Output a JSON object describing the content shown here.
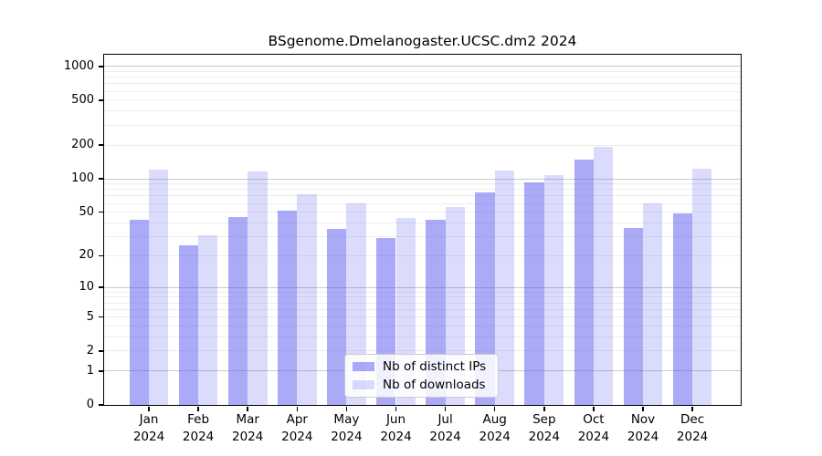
{
  "chart_data": {
    "type": "bar",
    "title": "BSgenome.Dmelanogaster.UCSC.dm2 2024",
    "year_label": "2024",
    "categories": [
      "Jan",
      "Feb",
      "Mar",
      "Apr",
      "May",
      "Jun",
      "Jul",
      "Aug",
      "Sep",
      "Oct",
      "Nov",
      "Dec"
    ],
    "series": [
      {
        "name": "Nb of distinct IPs",
        "key": "distinct-ips",
        "base_color": "#5656f0",
        "alpha": 0.5,
        "color_on_white": "#abaaf8",
        "values": [
          43,
          25,
          45,
          52,
          35,
          29,
          43,
          75,
          93,
          147,
          36,
          49
        ]
      },
      {
        "name": "Nb of downloads",
        "key": "downloads",
        "base_color": "#5656f0",
        "alpha": 0.215,
        "color_on_white": "#dbdbfc",
        "values": [
          121,
          31,
          116,
          72,
          60,
          44,
          56,
          118,
          108,
          193,
          60,
          124
        ]
      }
    ],
    "yscale": "log1p",
    "ylim": [
      0,
      1000
    ],
    "yticks": [
      0,
      1,
      2,
      5,
      10,
      20,
      50,
      100,
      200,
      500,
      1000
    ],
    "major_gridlines": [
      1,
      10,
      100,
      1000
    ],
    "minor_gridlines": [
      2,
      3,
      4,
      5,
      6,
      7,
      8,
      9,
      20,
      30,
      40,
      50,
      60,
      70,
      80,
      90,
      200,
      300,
      400,
      500,
      600,
      700,
      800,
      900
    ],
    "grid": true,
    "legend_position": "lower center"
  },
  "colors": {
    "background": "#ffffff",
    "axis": "#000000",
    "major_grid": "#c9c9c9",
    "minor_grid": "#ededed",
    "legend_border": "#cccccc"
  }
}
